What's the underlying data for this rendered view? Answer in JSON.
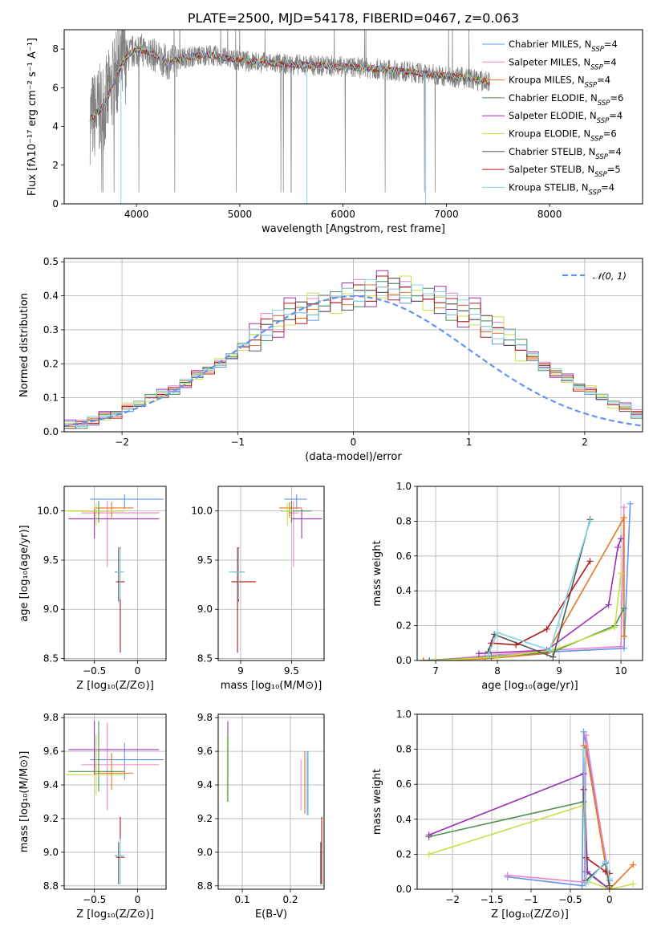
{
  "colors": [
    "#6495ed",
    "#ee82c8",
    "#e8741f",
    "#4f8f4f",
    "#9b30b5",
    "#c8e046",
    "#555555",
    "#b31b1b",
    "#7fd3de"
  ],
  "spectrum_color": "#808080",
  "chart_data": [
    {
      "id": "spectrum",
      "type": "line",
      "title": "PLATE=2500, MJD=54178, FIBERID=0467, z=0.063",
      "xlabel": "wavelength [Angstrom, rest frame]",
      "ylabel": "Flux [fλ10⁻¹⁷ erg cm⁻² s⁻¹ A⁻¹]",
      "xlim": [
        3300,
        8900
      ],
      "ylim": [
        0,
        9
      ],
      "xticks": [
        4000,
        5000,
        6000,
        7000,
        8000
      ],
      "yticks": [
        0,
        2,
        4,
        6,
        8
      ],
      "legend_position": "right",
      "continuum": {
        "x": [
          3550,
          3600,
          3700,
          3800,
          3900,
          4000,
          4100,
          4300,
          4500,
          4700,
          5000,
          5500,
          6000,
          6500,
          7000,
          7200,
          7400
        ],
        "y": [
          4.4,
          4.6,
          5.2,
          6.6,
          7.6,
          8.0,
          7.9,
          7.3,
          7.6,
          7.7,
          7.4,
          7.2,
          7.1,
          6.9,
          6.6,
          6.5,
          6.3
        ]
      },
      "series": [
        {
          "name": "Chabrier MILES, N",
          "sub": "SSP",
          "suffix": "=4"
        },
        {
          "name": "Salpeter MILES, N",
          "sub": "SSP",
          "suffix": "=4"
        },
        {
          "name": "Kroupa MILES, N",
          "sub": "SSP",
          "suffix": "=4"
        },
        {
          "name": "Chabrier ELODIE, N",
          "sub": "SSP",
          "suffix": "=6"
        },
        {
          "name": "Salpeter ELODIE, N",
          "sub": "SSP",
          "suffix": "=4"
        },
        {
          "name": "Kroupa ELODIE, N",
          "sub": "SSP",
          "suffix": "=6"
        },
        {
          "name": "Chabrier STELIB, N",
          "sub": "SSP",
          "suffix": "=4"
        },
        {
          "name": "Salpeter STELIB, N",
          "sub": "SSP",
          "suffix": "=5"
        },
        {
          "name": "Kroupa STELIB, N",
          "sub": "SSP",
          "suffix": "=4"
        }
      ]
    },
    {
      "id": "residuals",
      "type": "histogram",
      "xlabel": "(data-model)/error",
      "ylabel": "Normed distribution",
      "xlim": [
        -2.5,
        2.5
      ],
      "ylim": [
        0,
        0.51
      ],
      "xticks": [
        -2,
        -1,
        0,
        1,
        2
      ],
      "yticks": [
        0.0,
        0.1,
        0.2,
        0.3,
        0.4,
        0.5
      ],
      "grid": true,
      "legend_position": "top-right",
      "gaussian_label": "𝒩(0, 1)",
      "bin_edges_start": -2.5,
      "bin_width": 0.1,
      "base_hist": [
        0.02,
        0.02,
        0.03,
        0.04,
        0.05,
        0.07,
        0.08,
        0.1,
        0.11,
        0.12,
        0.14,
        0.16,
        0.18,
        0.2,
        0.22,
        0.25,
        0.27,
        0.3,
        0.31,
        0.33,
        0.35,
        0.36,
        0.37,
        0.38,
        0.39,
        0.4,
        0.4,
        0.41,
        0.42,
        0.41,
        0.4,
        0.39,
        0.38,
        0.36,
        0.34,
        0.33,
        0.31,
        0.29,
        0.27,
        0.24,
        0.22,
        0.19,
        0.17,
        0.15,
        0.13,
        0.12,
        0.1,
        0.08,
        0.07,
        0.05
      ],
      "offsets": [
        [
          0.01,
          -0.01,
          0.02,
          0.0,
          0.01,
          -0.02,
          0.0,
          0.01
        ],
        [
          0.02,
          0.03,
          -0.01,
          0.01,
          0.0,
          0.02,
          -0.01,
          0.0
        ],
        [
          -0.01,
          0.01,
          0.02,
          0.01,
          -0.01,
          0.0,
          0.02,
          0.01
        ],
        [
          0.0,
          -0.02,
          0.01,
          0.02,
          0.01,
          -0.01,
          0.0,
          0.02
        ],
        [
          0.03,
          0.0,
          -0.02,
          0.04,
          0.02,
          0.01,
          -0.01,
          0.0
        ],
        [
          0.01,
          0.02,
          0.0,
          -0.01,
          0.02,
          0.03,
          0.01,
          -0.02
        ],
        [
          -0.02,
          0.01,
          0.01,
          0.0,
          0.02,
          0.01,
          -0.01,
          0.01
        ],
        [
          0.0,
          0.02,
          -0.01,
          0.03,
          -0.02,
          0.01,
          0.02,
          0.0
        ],
        [
          0.02,
          -0.01,
          0.03,
          0.01,
          0.0,
          -0.01,
          0.02,
          0.01
        ]
      ]
    },
    {
      "id": "age-vs-Z",
      "type": "errorbar",
      "xlabel": "Z [log₁₀(Z/Z⊙)]",
      "ylabel": "age  [log₁₀(age/yr)]",
      "xlim": [
        -0.85,
        0.33
      ],
      "ylim": [
        8.48,
        10.25
      ],
      "xticks": [
        -0.5,
        0.0
      ],
      "yticks": [
        8.5,
        9.0,
        9.5,
        10.0
      ],
      "grid": true,
      "points": [
        {
          "x": -0.15,
          "y": 10.12,
          "xerr": [
            0.4,
            0.45
          ],
          "yerr": [
            0.1,
            0.05
          ],
          "c": 0
        },
        {
          "x": -0.35,
          "y": 9.98,
          "xerr": [
            0.3,
            0.6
          ],
          "yerr": [
            0.55,
            0.12
          ],
          "c": 1
        },
        {
          "x": -0.3,
          "y": 10.03,
          "xerr": [
            0.2,
            0.25
          ],
          "yerr": [
            0.1,
            0.06
          ],
          "c": 2
        },
        {
          "x": -0.45,
          "y": 10.0,
          "xerr": [
            0.35,
            0.3
          ],
          "yerr": [
            0.12,
            0.1
          ],
          "c": 3
        },
        {
          "x": -0.5,
          "y": 9.92,
          "xerr": [
            0.3,
            0.75
          ],
          "yerr": [
            0.2,
            0.1
          ],
          "c": 4
        },
        {
          "x": -0.48,
          "y": 10.0,
          "xerr": [
            0.35,
            0.35
          ],
          "yerr": [
            0.15,
            0.08
          ],
          "c": 5
        },
        {
          "x": -0.22,
          "y": 9.38,
          "xerr": [
            0.04,
            0.04
          ],
          "yerr": [
            0.3,
            0.25
          ],
          "c": 6
        },
        {
          "x": -0.2,
          "y": 9.28,
          "xerr": [
            0.05,
            0.05
          ],
          "yerr": [
            0.72,
            0.35
          ],
          "c": 7
        },
        {
          "x": -0.2,
          "y": 9.38,
          "xerr": [
            0.05,
            0.05
          ],
          "yerr": [
            0.28,
            0.24
          ],
          "c": 8
        }
      ]
    },
    {
      "id": "age-vs-mass",
      "type": "errorbar",
      "xlabel": "mass [log₁₀(M/M⊙)]",
      "ylabel": "",
      "xlim": [
        8.78,
        9.82
      ],
      "ylim": [
        8.48,
        10.25
      ],
      "xticks": [
        9.0,
        9.5
      ],
      "yticks": [
        8.5,
        9.0,
        9.5,
        10.0
      ],
      "grid": true,
      "points": [
        {
          "x": 9.55,
          "y": 10.12,
          "xerr": [
            0.12,
            0.1
          ],
          "yerr": [
            0.1,
            0.05
          ],
          "c": 0
        },
        {
          "x": 9.52,
          "y": 9.98,
          "xerr": [
            0.05,
            0.05
          ],
          "yerr": [
            0.55,
            0.12
          ],
          "c": 1
        },
        {
          "x": 9.48,
          "y": 10.03,
          "xerr": [
            0.1,
            0.12
          ],
          "yerr": [
            0.1,
            0.06
          ],
          "c": 2
        },
        {
          "x": 9.5,
          "y": 10.0,
          "xerr": [
            0.1,
            0.2
          ],
          "yerr": [
            0.12,
            0.1
          ],
          "c": 3
        },
        {
          "x": 9.6,
          "y": 9.92,
          "xerr": [
            0.1,
            0.2
          ],
          "yerr": [
            0.2,
            0.1
          ],
          "c": 4
        },
        {
          "x": 9.46,
          "y": 10.0,
          "xerr": [
            0.05,
            0.05
          ],
          "yerr": [
            0.15,
            0.08
          ],
          "c": 5
        },
        {
          "x": 8.98,
          "y": 9.38,
          "xerr": [
            0.06,
            0.06
          ],
          "yerr": [
            0.3,
            0.25
          ],
          "c": 6
        },
        {
          "x": 8.97,
          "y": 9.28,
          "xerr": [
            0.06,
            0.18
          ],
          "yerr": [
            0.72,
            0.35
          ],
          "c": 7
        },
        {
          "x": 8.98,
          "y": 9.38,
          "xerr": [
            0.1,
            0.06
          ],
          "yerr": [
            0.28,
            0.24
          ],
          "c": 8
        }
      ]
    },
    {
      "id": "weight-vs-age",
      "type": "line",
      "xlabel": "age  [log₁₀(age/yr)]",
      "ylabel": "mass weight",
      "xlim": [
        6.7,
        10.35
      ],
      "ylim": [
        0,
        1.0
      ],
      "xticks": [
        7,
        8,
        9,
        10
      ],
      "yticks": [
        0.0,
        0.2,
        0.4,
        0.6,
        0.8,
        1.0
      ],
      "grid": true,
      "series": [
        {
          "c": 0,
          "x": [
            6.8,
            7.8,
            8.9,
            10.05,
            10.15
          ],
          "y": [
            0.0,
            0.02,
            0.05,
            0.07,
            0.9
          ]
        },
        {
          "c": 1,
          "x": [
            6.9,
            7.9,
            8.9,
            10.0,
            10.05
          ],
          "y": [
            0.0,
            0.03,
            0.06,
            0.08,
            0.88
          ]
        },
        {
          "c": 2,
          "x": [
            6.8,
            7.8,
            8.8,
            10.05,
            10.05
          ],
          "y": [
            0.0,
            0.01,
            0.04,
            0.82,
            0.14
          ]
        },
        {
          "c": 3,
          "x": [
            6.9,
            7.9,
            8.9,
            9.9,
            10.05
          ],
          "y": [
            0.0,
            0.02,
            0.05,
            0.2,
            0.3
          ]
        },
        {
          "c": 4,
          "x": [
            7.7,
            8.8,
            9.8,
            9.95,
            10.0
          ],
          "y": [
            0.04,
            0.06,
            0.32,
            0.65,
            0.7
          ]
        },
        {
          "c": 5,
          "x": [
            7.0,
            8.0,
            8.9,
            9.9,
            10.0
          ],
          "y": [
            0.0,
            0.02,
            0.06,
            0.19,
            0.5
          ]
        },
        {
          "c": 6,
          "x": [
            7.85,
            7.95,
            8.9,
            9.5
          ],
          "y": [
            0.05,
            0.15,
            0.02,
            0.81
          ]
        },
        {
          "c": 7,
          "x": [
            7.9,
            8.3,
            8.8,
            9.5
          ],
          "y": [
            0.1,
            0.09,
            0.18,
            0.57
          ]
        },
        {
          "c": 8,
          "x": [
            7.85,
            8.0,
            8.85,
            9.5
          ],
          "y": [
            0.03,
            0.16,
            0.06,
            0.8
          ]
        }
      ]
    },
    {
      "id": "mass-vs-Z",
      "type": "errorbar",
      "xlabel": "Z [log₁₀(Z/Z⊙)]",
      "ylabel": "mass [log₁₀(M/M⊙)]",
      "xlim": [
        -0.85,
        0.33
      ],
      "ylim": [
        8.78,
        9.82
      ],
      "xticks": [
        -0.5,
        0.0
      ],
      "yticks": [
        8.8,
        9.0,
        9.2,
        9.4,
        9.6,
        9.8
      ],
      "grid": true,
      "points": [
        {
          "x": -0.15,
          "y": 9.55,
          "xerr": [
            0.4,
            0.45
          ],
          "yerr": [
            0.12,
            0.1
          ],
          "c": 0
        },
        {
          "x": -0.35,
          "y": 9.52,
          "xerr": [
            0.3,
            0.6
          ],
          "yerr": [
            0.27,
            0.25
          ],
          "c": 1
        },
        {
          "x": -0.3,
          "y": 9.47,
          "xerr": [
            0.2,
            0.25
          ],
          "yerr": [
            0.1,
            0.12
          ],
          "c": 2
        },
        {
          "x": -0.45,
          "y": 9.48,
          "xerr": [
            0.35,
            0.3
          ],
          "yerr": [
            0.12,
            0.3
          ],
          "c": 3
        },
        {
          "x": -0.5,
          "y": 9.61,
          "xerr": [
            0.3,
            0.75
          ],
          "yerr": [
            0.15,
            0.17
          ],
          "c": 4
        },
        {
          "x": -0.48,
          "y": 9.46,
          "xerr": [
            0.35,
            0.35
          ],
          "yerr": [
            0.12,
            0.24
          ],
          "c": 5
        },
        {
          "x": -0.22,
          "y": 8.98,
          "xerr": [
            0.04,
            0.04
          ],
          "yerr": [
            0.17,
            0.08
          ],
          "c": 6
        },
        {
          "x": -0.2,
          "y": 8.97,
          "xerr": [
            0.05,
            0.05
          ],
          "yerr": [
            0.16,
            0.24
          ],
          "c": 7
        },
        {
          "x": -0.2,
          "y": 8.98,
          "xerr": [
            0.05,
            0.05
          ],
          "yerr": [
            0.17,
            0.1
          ],
          "c": 8
        }
      ]
    },
    {
      "id": "mass-vs-ebv",
      "type": "errorbar",
      "xlabel": "E(B-V)",
      "ylabel": "",
      "xlim": [
        0.05,
        0.27
      ],
      "ylim": [
        8.78,
        9.82
      ],
      "xticks": [
        0.1,
        0.2
      ],
      "yticks": [
        8.8,
        9.0,
        9.2,
        9.4,
        9.6,
        9.8
      ],
      "grid": true,
      "points": [
        {
          "x": 0.07,
          "y": 9.55,
          "xerr": [
            0,
            0
          ],
          "yerr": [
            0.12,
            0.23
          ],
          "c": 4
        },
        {
          "x": 0.069,
          "y": 9.5,
          "xerr": [
            0,
            0
          ],
          "yerr": [
            0.2,
            0.2
          ],
          "c": 5
        },
        {
          "x": 0.07,
          "y": 9.45,
          "xerr": [
            0,
            0
          ],
          "yerr": [
            0.15,
            0.25
          ],
          "c": 3
        },
        {
          "x": 0.222,
          "y": 9.35,
          "xerr": [
            0,
            0
          ],
          "yerr": [
            0.1,
            0.2
          ],
          "c": 1
        },
        {
          "x": 0.23,
          "y": 9.38,
          "xerr": [
            0,
            0
          ],
          "yerr": [
            0.15,
            0.22
          ],
          "c": 2
        },
        {
          "x": 0.235,
          "y": 9.4,
          "xerr": [
            0,
            0
          ],
          "yerr": [
            0.18,
            0.2
          ],
          "c": 0
        },
        {
          "x": 0.237,
          "y": 9.42,
          "xerr": [
            0,
            0
          ],
          "yerr": [
            0.2,
            0.18
          ],
          "c": 8
        },
        {
          "x": 0.263,
          "y": 8.98,
          "xerr": [
            0,
            0
          ],
          "yerr": [
            0.17,
            0.08
          ],
          "c": 6
        },
        {
          "x": 0.265,
          "y": 8.97,
          "xerr": [
            0,
            0
          ],
          "yerr": [
            0.16,
            0.24
          ],
          "c": 7
        }
      ]
    },
    {
      "id": "weight-vs-Z",
      "type": "line",
      "xlabel": "Z [log₁₀(Z/Z⊙)]",
      "ylabel": "mass weight",
      "xlim": [
        -2.45,
        0.42
      ],
      "ylim": [
        0,
        1.0
      ],
      "xticks": [
        -2.0,
        -1.5,
        -1.0,
        -0.5,
        0.0
      ],
      "yticks": [
        0.0,
        0.2,
        0.4,
        0.6,
        0.8,
        1.0
      ],
      "grid": true,
      "series": [
        {
          "c": 0,
          "x": [
            -1.3,
            -0.35,
            -0.33,
            0.0
          ],
          "y": [
            0.07,
            0.02,
            0.9,
            0.05
          ]
        },
        {
          "c": 1,
          "x": [
            -1.3,
            -0.32,
            -0.3,
            0.0
          ],
          "y": [
            0.08,
            0.04,
            0.88,
            0.02
          ]
        },
        {
          "c": 2,
          "x": [
            -0.33,
            -0.3,
            0.0,
            0.3
          ],
          "y": [
            0.82,
            0.8,
            0.0,
            0.14
          ]
        },
        {
          "c": 3,
          "x": [
            -2.3,
            -0.33,
            -0.3,
            0.0
          ],
          "y": [
            0.3,
            0.5,
            0.1,
            0.0
          ]
        },
        {
          "c": 4,
          "x": [
            -2.3,
            -0.33,
            -0.28,
            0.0
          ],
          "y": [
            0.31,
            0.66,
            0.1,
            0.0
          ]
        },
        {
          "c": 5,
          "x": [
            -2.3,
            -0.33,
            -0.3,
            0.0,
            0.3
          ],
          "y": [
            0.2,
            0.48,
            0.05,
            0.0,
            0.03
          ]
        },
        {
          "c": 6,
          "x": [
            -0.33,
            -0.3,
            -0.05,
            0.0
          ],
          "y": [
            0.8,
            0.05,
            0.15,
            0.02
          ]
        },
        {
          "c": 7,
          "x": [
            -0.33,
            -0.3,
            -0.05,
            0.0
          ],
          "y": [
            0.57,
            0.18,
            0.1,
            0.09
          ]
        },
        {
          "c": 8,
          "x": [
            -0.33,
            -0.3,
            -0.05,
            0.0
          ],
          "y": [
            0.8,
            0.03,
            0.16,
            0.06
          ]
        }
      ]
    }
  ]
}
